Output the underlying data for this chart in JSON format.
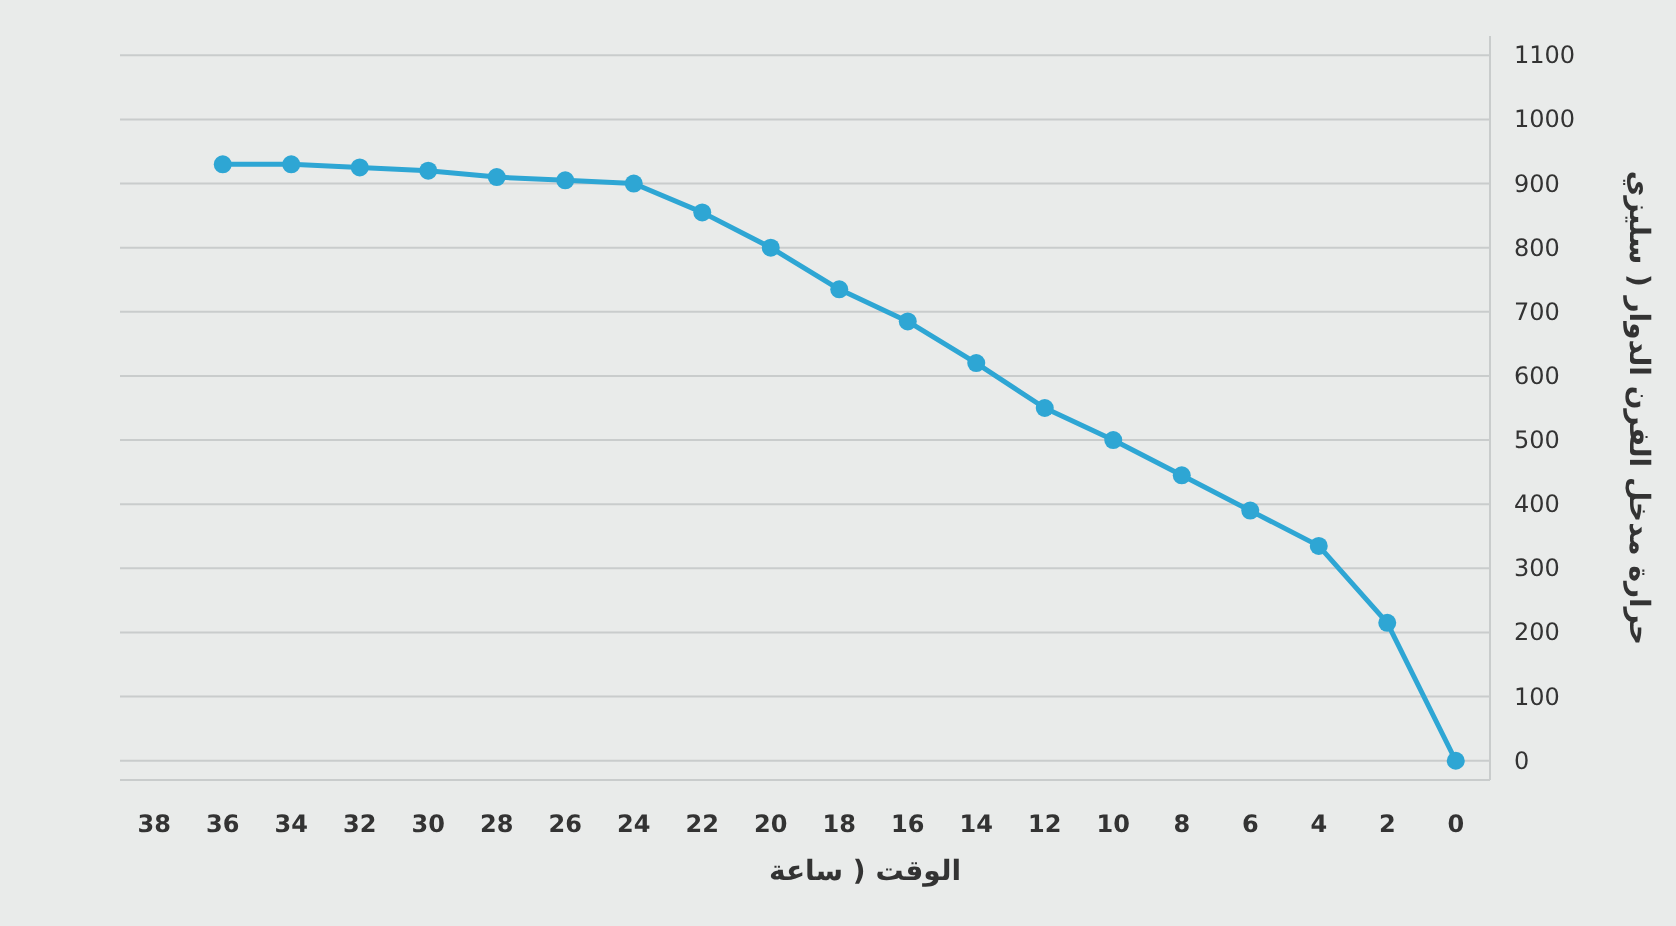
{
  "chart_data": {
    "type": "line",
    "xlabel": "الوقت ( ساعة",
    "ylabel": "حرارة مدخل الفرن الدوار ( سليزي",
    "x": [
      36,
      34,
      32,
      30,
      28,
      26,
      24,
      22,
      20,
      18,
      16,
      14,
      12,
      10,
      8,
      6,
      4,
      2,
      0
    ],
    "series": [
      {
        "color": "#2ea6d4",
        "values": [
          930,
          930,
          925,
          920,
          910,
          905,
          900,
          855,
          800,
          735,
          685,
          620,
          550,
          500,
          445,
          390,
          335,
          215,
          0
        ]
      }
    ],
    "xlim": [
      39,
      -1
    ],
    "xticks": [
      38,
      36,
      34,
      32,
      30,
      28,
      26,
      24,
      22,
      20,
      18,
      16,
      14,
      12,
      10,
      8,
      6,
      4,
      2,
      0
    ],
    "ylim": [
      -30,
      1130
    ],
    "yticks": [
      0,
      100,
      200,
      300,
      400,
      500,
      600,
      700,
      800,
      900,
      1000,
      1100
    ],
    "grid": "y",
    "marker": "circle",
    "line_style": "solid"
  }
}
